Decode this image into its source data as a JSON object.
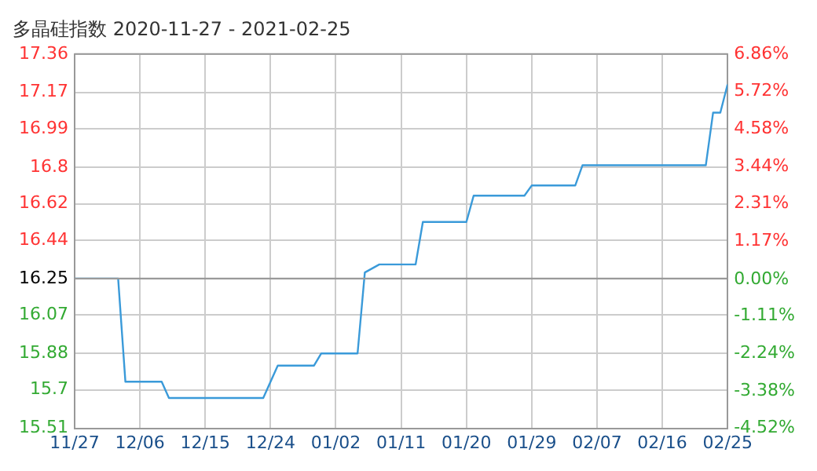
{
  "chart_data": {
    "type": "line",
    "title": "多晶硅指数 2020-11-27 - 2021-02-25",
    "x": [
      "2020-11-27",
      "2020-12-03",
      "2020-12-04",
      "2020-12-09",
      "2020-12-10",
      "2020-12-23",
      "2020-12-25",
      "2020-12-30",
      "2020-12-31",
      "2021-01-05",
      "2021-01-06",
      "2021-01-08",
      "2021-01-13",
      "2021-01-14",
      "2021-01-20",
      "2021-01-21",
      "2021-01-28",
      "2021-01-29",
      "2021-02-04",
      "2021-02-05",
      "2021-02-22",
      "2021-02-23",
      "2021-02-24",
      "2021-02-25"
    ],
    "series": [
      {
        "color": "#3a9ad9",
        "values": [
          16.25,
          16.25,
          15.74,
          15.74,
          15.66,
          15.66,
          15.82,
          15.82,
          15.88,
          15.88,
          16.28,
          16.32,
          16.32,
          16.53,
          16.53,
          16.66,
          16.66,
          16.71,
          16.71,
          16.81,
          16.81,
          17.07,
          17.07,
          17.21
        ]
      }
    ],
    "xlim": [
      "2020-11-27",
      "2021-02-25"
    ],
    "xticks": [
      {
        "value": "2020-11-27",
        "label": "11/27"
      },
      {
        "value": "2020-12-06",
        "label": "12/06"
      },
      {
        "value": "2020-12-15",
        "label": "12/15"
      },
      {
        "value": "2020-12-24",
        "label": "12/24"
      },
      {
        "value": "2021-01-02",
        "label": "01/02"
      },
      {
        "value": "2021-01-11",
        "label": "01/11"
      },
      {
        "value": "2021-01-20",
        "label": "01/20"
      },
      {
        "value": "2021-01-29",
        "label": "01/29"
      },
      {
        "value": "2021-02-07",
        "label": "02/07"
      },
      {
        "value": "2021-02-16",
        "label": "02/16"
      },
      {
        "value": "2021-02-25",
        "label": "02/25"
      }
    ],
    "ylim": [
      15.51,
      17.36
    ],
    "yticks": [
      15.51,
      15.7,
      15.88,
      16.07,
      16.25,
      16.44,
      16.62,
      16.8,
      16.99,
      17.17,
      17.36
    ],
    "y2lim": [
      -4.52,
      6.86
    ],
    "y2ticks": [
      {
        "value": -4.52,
        "label": "-4.52%"
      },
      {
        "value": -3.38,
        "label": "-3.38%"
      },
      {
        "value": -2.24,
        "label": "-2.24%"
      },
      {
        "value": -1.11,
        "label": "-1.11%"
      },
      {
        "value": 0,
        "label": "0.00%"
      },
      {
        "value": 1.17,
        "label": "1.17%"
      },
      {
        "value": 2.31,
        "label": "2.31%"
      },
      {
        "value": 3.44,
        "label": "3.44%"
      },
      {
        "value": 4.58,
        "label": "4.58%"
      },
      {
        "value": 5.72,
        "label": "5.72%"
      },
      {
        "value": 6.86,
        "label": "6.86%"
      }
    ],
    "ref_lines": [
      {
        "axis": "y",
        "value": 16.25,
        "color": "#999999"
      }
    ],
    "grid": true,
    "legend": false,
    "marker": "none",
    "line_style": "solid"
  }
}
